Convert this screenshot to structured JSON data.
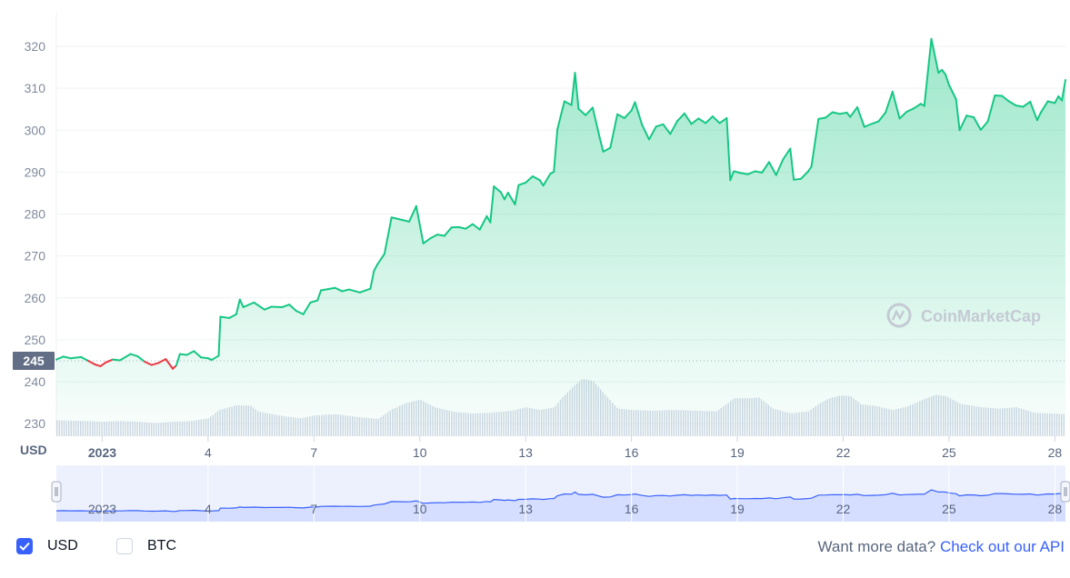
{
  "chart_data": {
    "type": "area",
    "currency": "USD",
    "y_ticks": [
      "230",
      "240",
      "250",
      "260",
      "270",
      "280",
      "290",
      "300",
      "310",
      "320"
    ],
    "ylim": [
      227,
      325
    ],
    "x_ticks": [
      {
        "label": "2023",
        "day": 1,
        "bold": true
      },
      {
        "label": "4",
        "day": 4
      },
      {
        "label": "7",
        "day": 7
      },
      {
        "label": "10",
        "day": 10
      },
      {
        "label": "13",
        "day": 13
      },
      {
        "label": "16",
        "day": 16
      },
      {
        "label": "19",
        "day": 19
      },
      {
        "label": "22",
        "day": 22
      },
      {
        "label": "25",
        "day": 25
      },
      {
        "label": "28",
        "day": 28
      }
    ],
    "xlim_days": [
      -0.3,
      28.3
    ],
    "reference_price": 245,
    "reference_label": "245",
    "colors": {
      "up": "#16c784",
      "down": "#ea3943",
      "volume": "#cfd6e4",
      "navigator": "#3861fb"
    },
    "price_series": [
      [
        -0.3,
        245.3
      ],
      [
        -0.1,
        246
      ],
      [
        0.1,
        245.6
      ],
      [
        0.4,
        245.9
      ],
      [
        0.6,
        245
      ],
      [
        0.8,
        244.1
      ],
      [
        0.95,
        243.7
      ],
      [
        1.1,
        244.6
      ],
      [
        1.3,
        245.3
      ],
      [
        1.5,
        245.1
      ],
      [
        1.8,
        246.6
      ],
      [
        2.0,
        246.1
      ],
      [
        2.2,
        244.8
      ],
      [
        2.4,
        244.0
      ],
      [
        2.6,
        244.5
      ],
      [
        2.8,
        245.4
      ],
      [
        3.0,
        243.1
      ],
      [
        3.1,
        243.9
      ],
      [
        3.2,
        246.6
      ],
      [
        3.4,
        246.4
      ],
      [
        3.6,
        247.3
      ],
      [
        3.8,
        245.8
      ],
      [
        4.0,
        245.6
      ],
      [
        4.1,
        245.2
      ],
      [
        4.3,
        246.2
      ],
      [
        4.35,
        255.5
      ],
      [
        4.6,
        255.2
      ],
      [
        4.8,
        256.1
      ],
      [
        4.9,
        259.6
      ],
      [
        5.0,
        257.8
      ],
      [
        5.3,
        258.9
      ],
      [
        5.6,
        257.2
      ],
      [
        5.8,
        257.9
      ],
      [
        6.1,
        257.8
      ],
      [
        6.3,
        258.4
      ],
      [
        6.5,
        256.9
      ],
      [
        6.7,
        256.1
      ],
      [
        6.9,
        258.9
      ],
      [
        7.1,
        259.4
      ],
      [
        7.2,
        261.8
      ],
      [
        7.4,
        262.1
      ],
      [
        7.6,
        262.4
      ],
      [
        7.8,
        261.6
      ],
      [
        8.0,
        262.0
      ],
      [
        8.3,
        261.3
      ],
      [
        8.6,
        262.2
      ],
      [
        8.7,
        266.4
      ],
      [
        8.8,
        268.0
      ],
      [
        9.0,
        270.5
      ],
      [
        9.2,
        279.2
      ],
      [
        9.5,
        278.6
      ],
      [
        9.7,
        278.2
      ],
      [
        9.9,
        281.9
      ],
      [
        10.1,
        273.0
      ],
      [
        10.3,
        274.2
      ],
      [
        10.5,
        275.1
      ],
      [
        10.7,
        274.8
      ],
      [
        10.9,
        276.8
      ],
      [
        11.1,
        276.9
      ],
      [
        11.3,
        276.5
      ],
      [
        11.5,
        277.6
      ],
      [
        11.7,
        276.3
      ],
      [
        11.9,
        279.5
      ],
      [
        12.0,
        278.0
      ],
      [
        12.1,
        286.6
      ],
      [
        12.3,
        285.2
      ],
      [
        12.4,
        283.5
      ],
      [
        12.5,
        285.1
      ],
      [
        12.7,
        282.3
      ],
      [
        12.8,
        286.9
      ],
      [
        13.0,
        287.5
      ],
      [
        13.2,
        289.0
      ],
      [
        13.4,
        288.1
      ],
      [
        13.5,
        286.8
      ],
      [
        13.7,
        289.6
      ],
      [
        13.8,
        290.1
      ],
      [
        13.9,
        300.2
      ],
      [
        14.1,
        306.9
      ],
      [
        14.3,
        306.0
      ],
      [
        14.4,
        313.7
      ],
      [
        14.5,
        305.1
      ],
      [
        14.7,
        303.6
      ],
      [
        14.9,
        305.4
      ],
      [
        15.1,
        298.2
      ],
      [
        15.2,
        294.9
      ],
      [
        15.4,
        295.8
      ],
      [
        15.6,
        303.8
      ],
      [
        15.8,
        302.9
      ],
      [
        16.0,
        304.7
      ],
      [
        16.1,
        306.7
      ],
      [
        16.3,
        301.3
      ],
      [
        16.5,
        297.8
      ],
      [
        16.7,
        300.9
      ],
      [
        16.9,
        301.4
      ],
      [
        17.1,
        299.1
      ],
      [
        17.3,
        302.2
      ],
      [
        17.5,
        304.0
      ],
      [
        17.7,
        301.5
      ],
      [
        17.9,
        302.8
      ],
      [
        18.1,
        301.7
      ],
      [
        18.3,
        303.3
      ],
      [
        18.5,
        301.7
      ],
      [
        18.7,
        302.9
      ],
      [
        18.8,
        288.1
      ],
      [
        18.9,
        290.2
      ],
      [
        19.1,
        289.8
      ],
      [
        19.3,
        289.5
      ],
      [
        19.5,
        290.2
      ],
      [
        19.7,
        289.9
      ],
      [
        19.9,
        292.4
      ],
      [
        20.1,
        289.3
      ],
      [
        20.3,
        293.1
      ],
      [
        20.5,
        295.6
      ],
      [
        20.6,
        288.2
      ],
      [
        20.8,
        288.4
      ],
      [
        21.0,
        290.1
      ],
      [
        21.1,
        291.3
      ],
      [
        21.3,
        302.7
      ],
      [
        21.5,
        303.0
      ],
      [
        21.7,
        304.3
      ],
      [
        21.9,
        303.9
      ],
      [
        22.1,
        304.2
      ],
      [
        22.2,
        303.2
      ],
      [
        22.4,
        305.5
      ],
      [
        22.6,
        300.8
      ],
      [
        22.8,
        301.5
      ],
      [
        23.0,
        302.1
      ],
      [
        23.2,
        304.2
      ],
      [
        23.4,
        309.2
      ],
      [
        23.6,
        302.8
      ],
      [
        23.8,
        304.4
      ],
      [
        24.0,
        305.2
      ],
      [
        24.2,
        306.3
      ],
      [
        24.3,
        305.8
      ],
      [
        24.5,
        321.8
      ],
      [
        24.7,
        313.7
      ],
      [
        24.8,
        314.4
      ],
      [
        24.9,
        313.3
      ],
      [
        25.0,
        310.8
      ],
      [
        25.2,
        307.4
      ],
      [
        25.3,
        300.0
      ],
      [
        25.5,
        303.5
      ],
      [
        25.7,
        303.1
      ],
      [
        25.9,
        300.1
      ],
      [
        26.1,
        302.1
      ],
      [
        26.3,
        308.3
      ],
      [
        26.5,
        308.2
      ],
      [
        26.7,
        306.9
      ],
      [
        26.9,
        305.9
      ],
      [
        27.1,
        305.6
      ],
      [
        27.3,
        306.8
      ],
      [
        27.5,
        302.4
      ],
      [
        27.6,
        304.2
      ],
      [
        27.8,
        306.9
      ],
      [
        28.0,
        306.5
      ],
      [
        28.1,
        308.1
      ],
      [
        28.2,
        307.1
      ],
      [
        28.3,
        312.0
      ]
    ],
    "volume_series": [
      [
        -0.3,
        0.23
      ],
      [
        0.5,
        0.22
      ],
      [
        1.0,
        0.21
      ],
      [
        1.5,
        0.22
      ],
      [
        2.0,
        0.21
      ],
      [
        2.5,
        0.19
      ],
      [
        3.0,
        0.21
      ],
      [
        3.5,
        0.22
      ],
      [
        4.0,
        0.26
      ],
      [
        4.3,
        0.38
      ],
      [
        4.8,
        0.45
      ],
      [
        5.2,
        0.44
      ],
      [
        5.4,
        0.36
      ],
      [
        6.0,
        0.3
      ],
      [
        6.6,
        0.26
      ],
      [
        7.0,
        0.3
      ],
      [
        7.6,
        0.32
      ],
      [
        8.2,
        0.28
      ],
      [
        8.8,
        0.25
      ],
      [
        9.2,
        0.39
      ],
      [
        9.6,
        0.48
      ],
      [
        10.0,
        0.53
      ],
      [
        10.4,
        0.42
      ],
      [
        11.0,
        0.35
      ],
      [
        11.5,
        0.33
      ],
      [
        12.0,
        0.34
      ],
      [
        12.6,
        0.37
      ],
      [
        13.0,
        0.42
      ],
      [
        13.4,
        0.38
      ],
      [
        13.8,
        0.42
      ],
      [
        14.0,
        0.55
      ],
      [
        14.4,
        0.75
      ],
      [
        14.6,
        0.83
      ],
      [
        14.9,
        0.8
      ],
      [
        15.2,
        0.62
      ],
      [
        15.6,
        0.4
      ],
      [
        16.0,
        0.38
      ],
      [
        16.6,
        0.37
      ],
      [
        17.2,
        0.38
      ],
      [
        17.8,
        0.37
      ],
      [
        18.4,
        0.36
      ],
      [
        18.9,
        0.55
      ],
      [
        19.3,
        0.55
      ],
      [
        19.6,
        0.56
      ],
      [
        20.0,
        0.4
      ],
      [
        20.5,
        0.33
      ],
      [
        21.0,
        0.36
      ],
      [
        21.3,
        0.47
      ],
      [
        21.6,
        0.55
      ],
      [
        21.9,
        0.59
      ],
      [
        22.2,
        0.58
      ],
      [
        22.5,
        0.46
      ],
      [
        22.9,
        0.44
      ],
      [
        23.4,
        0.38
      ],
      [
        23.8,
        0.43
      ],
      [
        24.3,
        0.54
      ],
      [
        24.6,
        0.6
      ],
      [
        24.9,
        0.58
      ],
      [
        25.3,
        0.47
      ],
      [
        25.9,
        0.42
      ],
      [
        26.4,
        0.4
      ],
      [
        26.9,
        0.42
      ],
      [
        27.4,
        0.34
      ],
      [
        27.9,
        0.33
      ],
      [
        28.3,
        0.32
      ]
    ],
    "navigator_ticks": [
      {
        "label": "2023",
        "day": 1,
        "bold": true
      },
      {
        "label": "4",
        "day": 4
      },
      {
        "label": "7",
        "day": 7
      },
      {
        "label": "10",
        "day": 10
      },
      {
        "label": "13",
        "day": 13
      },
      {
        "label": "16",
        "day": 16
      },
      {
        "label": "19",
        "day": 19
      },
      {
        "label": "22",
        "day": 22
      },
      {
        "label": "25",
        "day": 25
      },
      {
        "label": "28",
        "day": 28
      }
    ]
  },
  "watermark": "CoinMarketCap",
  "footer": {
    "usd_label": "USD",
    "btc_label": "BTC",
    "api_prompt": "Want more data?",
    "api_link": "Check out our API"
  }
}
